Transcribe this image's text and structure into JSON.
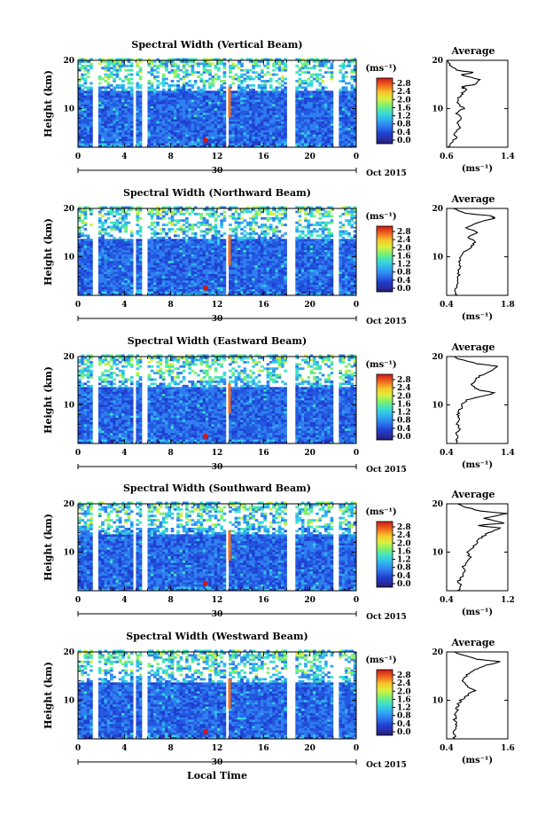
{
  "figure": {
    "xlabel": "Local Time",
    "date_label": "Oct 2015",
    "day_label": "30",
    "colorbar_unit": "(ms⁻¹)",
    "colorbar_ticks": [
      "2.8",
      "2.4",
      "2.0",
      "1.6",
      "1.2",
      "0.8",
      "0.4",
      "0.0"
    ],
    "colormap": [
      "#2b2b8f",
      "#1f3fd0",
      "#2f6fe8",
      "#2fa4f0",
      "#34d0e8",
      "#40e8b0",
      "#7cf070",
      "#c8f040",
      "#f8e030",
      "#f8a020",
      "#f05020",
      "#d01818"
    ]
  },
  "chart_data": [
    {
      "type": "heatmap",
      "title": "Spectral Width (Vertical Beam)",
      "ylabel": "Height (km)",
      "xlim": [
        0,
        24
      ],
      "ylim": [
        2,
        20
      ],
      "x_ticks": [
        "0",
        "4",
        "8",
        "12",
        "16",
        "20",
        "0"
      ],
      "y_ticks": [
        "10",
        "20"
      ],
      "colorbar_range": [
        0.0,
        2.8
      ],
      "average": {
        "title": "Average",
        "xlabel": "(ms⁻¹)",
        "xlim": [
          0.6,
          1.4
        ],
        "x_ticks": [
          "0.6",
          "1.4"
        ],
        "y_ticks": [
          "10",
          "20"
        ],
        "profile": [
          [
            0.62,
            2
          ],
          [
            0.66,
            3
          ],
          [
            0.72,
            4
          ],
          [
            0.7,
            5
          ],
          [
            0.78,
            6
          ],
          [
            0.72,
            7
          ],
          [
            0.8,
            8
          ],
          [
            0.74,
            9
          ],
          [
            0.82,
            10
          ],
          [
            0.76,
            11
          ],
          [
            0.74,
            12
          ],
          [
            0.8,
            13
          ],
          [
            0.85,
            14
          ],
          [
            0.8,
            14.5
          ],
          [
            0.95,
            15
          ],
          [
            1.05,
            16
          ],
          [
            0.78,
            17
          ],
          [
            0.95,
            17.5
          ],
          [
            0.72,
            18
          ],
          [
            0.65,
            19
          ],
          [
            0.62,
            20
          ]
        ]
      }
    },
    {
      "type": "heatmap",
      "title": "Spectral Width (Northward Beam)",
      "ylabel": "Height (km)",
      "xlim": [
        0,
        24
      ],
      "ylim": [
        2,
        20
      ],
      "x_ticks": [
        "0",
        "4",
        "8",
        "12",
        "16",
        "20",
        "0"
      ],
      "y_ticks": [
        "10",
        "20"
      ],
      "colorbar_range": [
        0.0,
        2.8
      ],
      "average": {
        "title": "Average",
        "xlabel": "(ms⁻¹)",
        "xlim": [
          0.4,
          1.8
        ],
        "x_ticks": [
          "0.4",
          "1.8"
        ],
        "y_ticks": [
          "10",
          "20"
        ],
        "profile": [
          [
            0.62,
            2
          ],
          [
            0.6,
            3
          ],
          [
            0.66,
            4
          ],
          [
            0.62,
            5
          ],
          [
            0.68,
            6
          ],
          [
            0.64,
            7
          ],
          [
            0.72,
            8
          ],
          [
            0.7,
            9
          ],
          [
            0.74,
            10
          ],
          [
            0.8,
            11
          ],
          [
            0.95,
            12
          ],
          [
            1.05,
            13
          ],
          [
            0.9,
            14
          ],
          [
            1.1,
            15
          ],
          [
            0.85,
            16
          ],
          [
            1.1,
            17
          ],
          [
            1.5,
            18
          ],
          [
            1.4,
            18.5
          ],
          [
            0.8,
            19
          ],
          [
            0.55,
            20
          ]
        ]
      }
    },
    {
      "type": "heatmap",
      "title": "Spectral Width (Eastward Beam)",
      "ylabel": "Height (km)",
      "xlim": [
        0,
        24
      ],
      "ylim": [
        2,
        20
      ],
      "x_ticks": [
        "0",
        "4",
        "8",
        "12",
        "16",
        "20",
        "0"
      ],
      "y_ticks": [
        "10",
        "20"
      ],
      "colorbar_range": [
        0.0,
        2.8
      ],
      "average": {
        "title": "Average",
        "xlabel": "(ms⁻¹)",
        "xlim": [
          0.4,
          1.4
        ],
        "x_ticks": [
          "0.4",
          "1.4"
        ],
        "y_ticks": [
          "10",
          "20"
        ],
        "profile": [
          [
            0.55,
            2
          ],
          [
            0.58,
            3
          ],
          [
            0.55,
            4
          ],
          [
            0.6,
            5
          ],
          [
            0.58,
            6
          ],
          [
            0.62,
            7
          ],
          [
            0.58,
            8
          ],
          [
            0.62,
            9
          ],
          [
            0.66,
            10
          ],
          [
            0.72,
            11
          ],
          [
            1.05,
            12
          ],
          [
            1.2,
            12.5
          ],
          [
            0.95,
            13
          ],
          [
            0.8,
            14
          ],
          [
            0.85,
            15
          ],
          [
            0.95,
            16
          ],
          [
            1.1,
            17
          ],
          [
            1.25,
            18
          ],
          [
            0.9,
            18.5
          ],
          [
            0.6,
            19.5
          ],
          [
            0.52,
            20
          ]
        ]
      }
    },
    {
      "type": "heatmap",
      "title": "Spectral Width (Southward Beam)",
      "ylabel": "Height (km)",
      "xlim": [
        0,
        24
      ],
      "ylim": [
        2,
        20
      ],
      "x_ticks": [
        "0",
        "4",
        "8",
        "12",
        "16",
        "20",
        "0"
      ],
      "y_ticks": [
        "10",
        "20"
      ],
      "colorbar_range": [
        0.0,
        2.8
      ],
      "average": {
        "title": "Average",
        "xlabel": "(ms⁻¹)",
        "xlim": [
          0.4,
          1.2
        ],
        "x_ticks": [
          "0.4",
          "1.2"
        ],
        "y_ticks": [
          "10",
          "20"
        ],
        "profile": [
          [
            0.55,
            2
          ],
          [
            0.58,
            3
          ],
          [
            0.56,
            4
          ],
          [
            0.6,
            5
          ],
          [
            0.64,
            6
          ],
          [
            0.62,
            7
          ],
          [
            0.66,
            8
          ],
          [
            0.7,
            9
          ],
          [
            0.68,
            10
          ],
          [
            0.74,
            11
          ],
          [
            0.8,
            12
          ],
          [
            0.85,
            13
          ],
          [
            0.95,
            14
          ],
          [
            1.1,
            15
          ],
          [
            0.8,
            15.5
          ],
          [
            1.15,
            16
          ],
          [
            0.9,
            17
          ],
          [
            1.18,
            18
          ],
          [
            0.85,
            18.5
          ],
          [
            0.6,
            19.5
          ],
          [
            0.55,
            20
          ]
        ]
      }
    },
    {
      "type": "heatmap",
      "title": "Spectral Width (Westward Beam)",
      "ylabel": "Height (km)",
      "xlim": [
        0,
        24
      ],
      "ylim": [
        2,
        20
      ],
      "x_ticks": [
        "0",
        "4",
        "8",
        "12",
        "16",
        "20",
        "0"
      ],
      "y_ticks": [
        "10",
        "20"
      ],
      "colorbar_range": [
        0.0,
        2.8
      ],
      "average": {
        "title": "Average",
        "xlabel": "(ms⁻¹)",
        "xlim": [
          0.4,
          1.6
        ],
        "x_ticks": [
          "0.4",
          "1.6"
        ],
        "y_ticks": [
          "10",
          "20"
        ],
        "profile": [
          [
            0.55,
            2
          ],
          [
            0.56,
            3
          ],
          [
            0.55,
            4
          ],
          [
            0.58,
            5
          ],
          [
            0.56,
            6
          ],
          [
            0.58,
            7
          ],
          [
            0.6,
            8
          ],
          [
            0.62,
            9
          ],
          [
            0.68,
            10
          ],
          [
            0.8,
            11
          ],
          [
            0.95,
            12
          ],
          [
            0.8,
            13
          ],
          [
            0.7,
            14
          ],
          [
            0.78,
            15
          ],
          [
            0.9,
            16
          ],
          [
            1.1,
            17
          ],
          [
            1.45,
            18
          ],
          [
            1.0,
            18.5
          ],
          [
            0.65,
            19.5
          ],
          [
            0.55,
            20
          ]
        ]
      }
    }
  ]
}
